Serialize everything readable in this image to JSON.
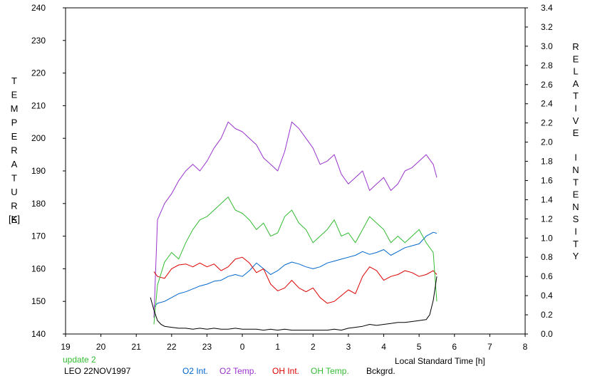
{
  "chart_data": {
    "type": "line",
    "left_axis": {
      "label": "TEMPERATURE",
      "unit": "[K]",
      "range": [
        140,
        240
      ],
      "ticks": [
        240,
        230,
        220,
        210,
        200,
        190,
        180,
        170,
        160,
        150,
        140
      ]
    },
    "right_axis": {
      "label": "RELATIVE INTENSITY",
      "range": [
        0,
        3.4
      ],
      "ticks": [
        "3.4",
        "3.2",
        "3.0",
        "2.8",
        "2.6",
        "2.4",
        "2.2",
        "2.0",
        "1.8",
        "1.6",
        "1.4",
        "1.2",
        "1.0",
        "0.8",
        "0.6",
        "0.4",
        "0.2",
        "0.0"
      ]
    },
    "x_axis": {
      "label": "Local Standard Time [h]",
      "range": [
        19,
        32
      ],
      "tick_labels": [
        "19",
        "20",
        "21",
        "22",
        "23",
        "0",
        "1",
        "2",
        "3",
        "4",
        "5",
        "6",
        "7",
        "8"
      ]
    },
    "grid": false,
    "legend_position": "bottom",
    "series": [
      {
        "name": "O2 Int.",
        "color": "#0066cc",
        "axis": "right",
        "x": [
          21.5,
          21.6,
          21.8,
          22.0,
          22.2,
          22.4,
          22.6,
          22.8,
          23.0,
          23.2,
          23.4,
          23.6,
          23.8,
          24.0,
          24.2,
          24.4,
          24.6,
          24.8,
          25.0,
          25.2,
          25.4,
          25.6,
          25.8,
          26.0,
          26.2,
          26.4,
          26.6,
          26.8,
          27.0,
          27.2,
          27.4,
          27.6,
          27.8,
          28.0,
          28.2,
          28.4,
          28.6,
          28.8,
          29.0,
          29.2,
          29.4,
          29.5
        ],
        "values": [
          0.28,
          0.32,
          0.34,
          0.38,
          0.42,
          0.44,
          0.47,
          0.5,
          0.52,
          0.55,
          0.56,
          0.6,
          0.62,
          0.6,
          0.66,
          0.74,
          0.68,
          0.62,
          0.66,
          0.72,
          0.75,
          0.73,
          0.7,
          0.68,
          0.7,
          0.74,
          0.76,
          0.78,
          0.8,
          0.82,
          0.86,
          0.83,
          0.85,
          0.88,
          0.82,
          0.86,
          0.9,
          0.92,
          0.94,
          1.02,
          1.06,
          1.05
        ]
      },
      {
        "name": "O2 Temp.",
        "color": "#9933cc",
        "axis": "left",
        "x": [
          21.5,
          21.6,
          21.8,
          22.0,
          22.2,
          22.4,
          22.6,
          22.8,
          23.0,
          23.2,
          23.4,
          23.6,
          23.8,
          24.0,
          24.2,
          24.4,
          24.6,
          24.8,
          25.0,
          25.2,
          25.4,
          25.6,
          25.8,
          26.0,
          26.2,
          26.4,
          26.6,
          26.8,
          27.0,
          27.2,
          27.4,
          27.6,
          27.8,
          28.0,
          28.2,
          28.4,
          28.6,
          28.8,
          29.0,
          29.2,
          29.4,
          29.5
        ],
        "values": [
          145,
          175,
          180,
          183,
          187,
          190,
          192,
          190,
          193,
          197,
          200,
          205,
          203,
          202,
          200,
          198,
          194,
          192,
          190,
          196,
          205,
          203,
          200,
          197,
          192,
          193,
          195,
          189,
          186,
          188,
          190,
          184,
          186,
          188,
          184,
          186,
          190,
          191,
          193,
          195,
          192,
          188
        ]
      },
      {
        "name": "OH Int.",
        "color": "#dd0000",
        "axis": "right",
        "x": [
          21.5,
          21.6,
          21.8,
          22.0,
          22.2,
          22.4,
          22.6,
          22.8,
          23.0,
          23.2,
          23.4,
          23.6,
          23.8,
          24.0,
          24.2,
          24.4,
          24.6,
          24.8,
          25.0,
          25.2,
          25.4,
          25.6,
          25.8,
          26.0,
          26.2,
          26.4,
          26.6,
          26.8,
          27.0,
          27.2,
          27.4,
          27.6,
          27.8,
          28.0,
          28.2,
          28.4,
          28.6,
          28.8,
          29.0,
          29.2,
          29.4,
          29.5
        ],
        "values": [
          0.65,
          0.6,
          0.58,
          0.68,
          0.72,
          0.73,
          0.7,
          0.74,
          0.7,
          0.73,
          0.66,
          0.7,
          0.78,
          0.8,
          0.74,
          0.64,
          0.68,
          0.52,
          0.45,
          0.48,
          0.56,
          0.48,
          0.44,
          0.48,
          0.38,
          0.32,
          0.34,
          0.4,
          0.46,
          0.42,
          0.6,
          0.7,
          0.66,
          0.56,
          0.6,
          0.62,
          0.66,
          0.64,
          0.6,
          0.62,
          0.66,
          0.62
        ]
      },
      {
        "name": "OH Temp.",
        "color": "#33bb33",
        "axis": "left",
        "x": [
          21.5,
          21.6,
          21.8,
          22.0,
          22.2,
          22.4,
          22.6,
          22.8,
          23.0,
          23.2,
          23.4,
          23.6,
          23.8,
          24.0,
          24.2,
          24.4,
          24.6,
          24.8,
          25.0,
          25.2,
          25.4,
          25.6,
          25.8,
          26.0,
          26.2,
          26.4,
          26.6,
          26.8,
          27.0,
          27.2,
          27.4,
          27.6,
          27.8,
          28.0,
          28.2,
          28.4,
          28.6,
          28.8,
          29.0,
          29.2,
          29.4,
          29.5
        ],
        "values": [
          143,
          155,
          162,
          165,
          163,
          168,
          172,
          175,
          176,
          178,
          180,
          182,
          178,
          177,
          175,
          172,
          174,
          170,
          171,
          176,
          178,
          174,
          172,
          168,
          170,
          172,
          175,
          170,
          171,
          168,
          172,
          176,
          174,
          172,
          168,
          170,
          168,
          170,
          172,
          168,
          165,
          150
        ]
      },
      {
        "name": "Bckgrd.",
        "color": "#000000",
        "axis": "right",
        "x": [
          21.4,
          21.5,
          21.6,
          21.7,
          21.8,
          22.0,
          22.2,
          22.4,
          22.6,
          22.8,
          23.0,
          23.2,
          23.4,
          23.6,
          23.8,
          24.0,
          24.2,
          24.4,
          24.6,
          24.8,
          25.0,
          25.2,
          25.4,
          25.6,
          25.8,
          26.0,
          26.2,
          26.4,
          26.6,
          26.8,
          27.0,
          27.2,
          27.4,
          27.6,
          27.8,
          28.0,
          28.2,
          28.4,
          28.6,
          28.8,
          29.0,
          29.2,
          29.3,
          29.4,
          29.5
        ],
        "values": [
          0.38,
          0.25,
          0.14,
          0.1,
          0.08,
          0.07,
          0.06,
          0.06,
          0.05,
          0.06,
          0.05,
          0.06,
          0.05,
          0.05,
          0.06,
          0.05,
          0.05,
          0.05,
          0.04,
          0.05,
          0.04,
          0.05,
          0.04,
          0.04,
          0.04,
          0.04,
          0.04,
          0.04,
          0.05,
          0.04,
          0.06,
          0.07,
          0.08,
          0.1,
          0.09,
          0.1,
          0.11,
          0.12,
          0.12,
          0.13,
          0.14,
          0.15,
          0.2,
          0.35,
          0.6
        ]
      }
    ],
    "footer": {
      "update": "update 2",
      "site_date": "LEO 22NOV1997"
    }
  },
  "colors": {
    "axis": "#000000",
    "update_text": "#33bb33"
  }
}
